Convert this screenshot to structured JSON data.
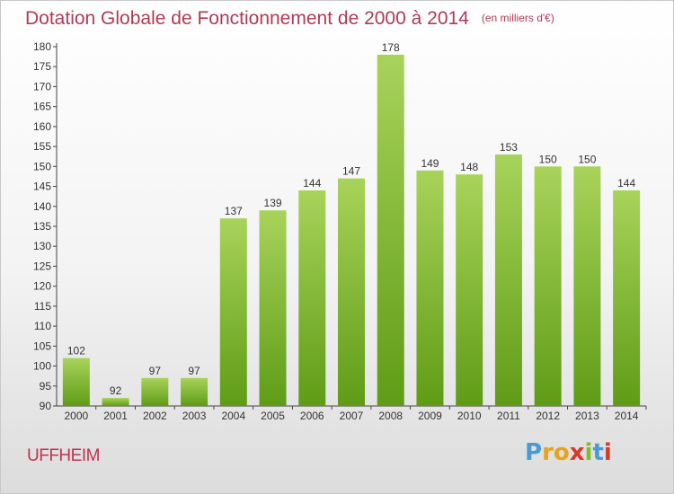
{
  "title": "Dotation Globale de Fonctionnement de 2000 à 2014",
  "subtitle": "(en milliers d'€)",
  "commune": "UFFHEIM",
  "logo": {
    "letters": [
      "P",
      "r",
      "o",
      "x",
      "i",
      "t",
      "i"
    ],
    "colors": [
      "#4a9ad8",
      "#e8a21c",
      "#e8a21c",
      "#d83a2a",
      "#7bbf2a",
      "#4a9ad8",
      "#d83a2a"
    ]
  },
  "colors": {
    "bar_top": "#a8d35a",
    "bar_bottom": "#5f9c16",
    "title": "#b03a55",
    "commune": "#c0324e"
  },
  "chart_data": {
    "type": "bar",
    "categories": [
      "2000",
      "2001",
      "2002",
      "2003",
      "2004",
      "2005",
      "2006",
      "2007",
      "2008",
      "2009",
      "2010",
      "2011",
      "2012",
      "2013",
      "2014"
    ],
    "values": [
      102,
      92,
      97,
      97,
      137,
      139,
      144,
      147,
      178,
      149,
      148,
      153,
      150,
      150,
      144
    ],
    "data_labels": [
      "102",
      "92",
      "97",
      "97",
      "137",
      "139",
      "144",
      "147",
      "178",
      "149",
      "148",
      "153",
      "150",
      "150",
      "144"
    ],
    "yticks": [
      90,
      95,
      100,
      105,
      110,
      115,
      120,
      125,
      130,
      135,
      140,
      145,
      150,
      155,
      160,
      165,
      170,
      175,
      180
    ],
    "ylim": [
      90,
      180
    ],
    "grid": false,
    "legend": "none"
  }
}
